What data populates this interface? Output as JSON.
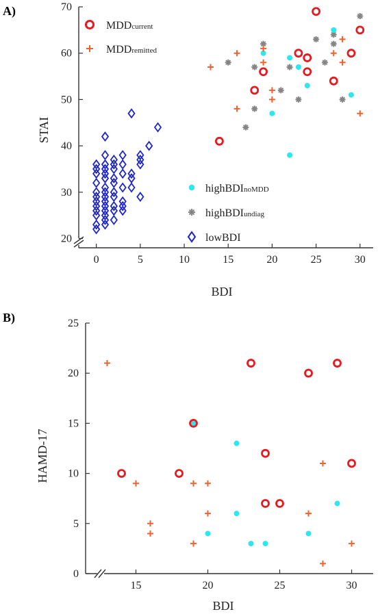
{
  "panels": {
    "a": {
      "label": "A)"
    },
    "b": {
      "label": "B)"
    }
  },
  "legend": {
    "mdd_current": {
      "main": "MDD",
      "sub": "current"
    },
    "mdd_remitted": {
      "main": "MDD",
      "sub": "remitted"
    },
    "high_nomdd": {
      "main": "highBDI",
      "sub": "noMDD"
    },
    "high_undiag": {
      "main": "highBDI",
      "sub": "undiag"
    },
    "low": {
      "main": "lowBDI",
      "sub": ""
    }
  },
  "colors": {
    "mdd_current": "#e8191f",
    "mdd_remitted": "#f0622d",
    "high_nomdd": "#2ee6ee",
    "high_undiag": "#858585",
    "low": "#1d24c9",
    "axis": "#333333"
  },
  "chart_data": [
    {
      "type": "scatter",
      "panel": "A)",
      "xlabel": "BDI",
      "ylabel": "STAI",
      "xlim": [
        -2,
        31.5
      ],
      "ylim": [
        18,
        70
      ],
      "xticks": [
        0,
        5,
        10,
        15,
        20,
        25,
        30
      ],
      "yticks": [
        20,
        30,
        40,
        50,
        60,
        70
      ],
      "axis_break": true,
      "series": [
        {
          "name": "MDDcurrent",
          "marker": "circle-open",
          "points": [
            [
              14,
              41
            ],
            [
              18,
              52
            ],
            [
              19,
              56
            ],
            [
              23,
              60
            ],
            [
              24,
              59
            ],
            [
              24,
              56
            ],
            [
              25,
              69
            ],
            [
              27,
              54
            ],
            [
              29,
              60
            ],
            [
              30,
              65
            ]
          ]
        },
        {
          "name": "MDDremitted",
          "marker": "plus",
          "points": [
            [
              13,
              57
            ],
            [
              16,
              60
            ],
            [
              16,
              48
            ],
            [
              19,
              58
            ],
            [
              19,
              61
            ],
            [
              20,
              52
            ],
            [
              20,
              50
            ],
            [
              27,
              60
            ],
            [
              28,
              58
            ],
            [
              28,
              63
            ],
            [
              30,
              47
            ]
          ]
        },
        {
          "name": "highBDInoMDD",
          "marker": "dot",
          "points": [
            [
              19,
              60
            ],
            [
              20,
              47
            ],
            [
              22,
              59
            ],
            [
              22,
              38
            ],
            [
              23,
              57
            ],
            [
              24,
              53
            ],
            [
              27,
              65
            ],
            [
              29,
              51
            ]
          ]
        },
        {
          "name": "highBDIundiag",
          "marker": "star",
          "points": [
            [
              15,
              58
            ],
            [
              17,
              44
            ],
            [
              18,
              57
            ],
            [
              18,
              48
            ],
            [
              19,
              62
            ],
            [
              21,
              52
            ],
            [
              22,
              57
            ],
            [
              23,
              50
            ],
            [
              25,
              63
            ],
            [
              26,
              58
            ],
            [
              27,
              64
            ],
            [
              27,
              62
            ],
            [
              28,
              50
            ],
            [
              30,
              68
            ]
          ]
        },
        {
          "name": "lowBDI",
          "marker": "diamond-open",
          "points": [
            [
              0,
              22
            ],
            [
              0,
              23
            ],
            [
              0,
              25
            ],
            [
              0,
              26
            ],
            [
              0,
              27
            ],
            [
              0,
              28
            ],
            [
              0,
              29
            ],
            [
              0,
              30
            ],
            [
              0,
              32
            ],
            [
              0,
              34
            ],
            [
              0,
              35
            ],
            [
              0,
              36
            ],
            [
              1,
              23
            ],
            [
              1,
              24
            ],
            [
              1,
              25
            ],
            [
              1,
              26
            ],
            [
              1,
              27
            ],
            [
              1,
              28
            ],
            [
              1,
              29
            ],
            [
              1,
              30
            ],
            [
              1,
              31
            ],
            [
              1,
              33
            ],
            [
              1,
              34
            ],
            [
              1,
              35
            ],
            [
              1,
              36
            ],
            [
              1,
              38
            ],
            [
              1,
              42
            ],
            [
              2,
              24
            ],
            [
              2,
              26
            ],
            [
              2,
              27
            ],
            [
              2,
              29
            ],
            [
              2,
              30
            ],
            [
              2,
              32
            ],
            [
              2,
              33
            ],
            [
              2,
              35
            ],
            [
              2,
              36
            ],
            [
              2,
              37
            ],
            [
              3,
              26
            ],
            [
              3,
              27
            ],
            [
              3,
              28
            ],
            [
              3,
              31
            ],
            [
              3,
              34
            ],
            [
              3,
              36
            ],
            [
              3,
              38
            ],
            [
              4,
              31
            ],
            [
              4,
              33
            ],
            [
              4,
              34
            ],
            [
              4,
              47
            ],
            [
              5,
              29
            ],
            [
              5,
              36
            ],
            [
              5,
              37
            ],
            [
              5,
              38
            ],
            [
              6,
              40
            ],
            [
              7,
              44
            ]
          ]
        }
      ]
    },
    {
      "type": "scatter",
      "panel": "B)",
      "xlabel": "BDI",
      "ylabel": "HAMD-17",
      "xlim": [
        11.5,
        31.5
      ],
      "ylim": [
        0,
        25
      ],
      "xticks": [
        15,
        20,
        25,
        30
      ],
      "yticks": [
        0,
        5,
        10,
        15,
        20,
        25
      ],
      "axis_break": true,
      "series": [
        {
          "name": "MDDcurrent",
          "marker": "circle-open",
          "points": [
            [
              14,
              10
            ],
            [
              18,
              10
            ],
            [
              19,
              15
            ],
            [
              23,
              21
            ],
            [
              24,
              12
            ],
            [
              24,
              7
            ],
            [
              25,
              7
            ],
            [
              27,
              20
            ],
            [
              29,
              21
            ],
            [
              30,
              11
            ]
          ]
        },
        {
          "name": "MDDremitted",
          "marker": "plus",
          "points": [
            [
              13,
              21
            ],
            [
              15,
              9
            ],
            [
              16,
              5
            ],
            [
              16,
              4
            ],
            [
              19,
              9
            ],
            [
              19,
              3
            ],
            [
              20,
              9
            ],
            [
              20,
              6
            ],
            [
              27,
              6
            ],
            [
              28,
              11
            ],
            [
              28,
              1
            ],
            [
              30,
              3
            ]
          ]
        },
        {
          "name": "highBDInoMDD",
          "marker": "dot",
          "points": [
            [
              19,
              15
            ],
            [
              20,
              4
            ],
            [
              22,
              13
            ],
            [
              22,
              6
            ],
            [
              23,
              3
            ],
            [
              24,
              3
            ],
            [
              27,
              4
            ],
            [
              29,
              7
            ]
          ]
        }
      ]
    }
  ]
}
